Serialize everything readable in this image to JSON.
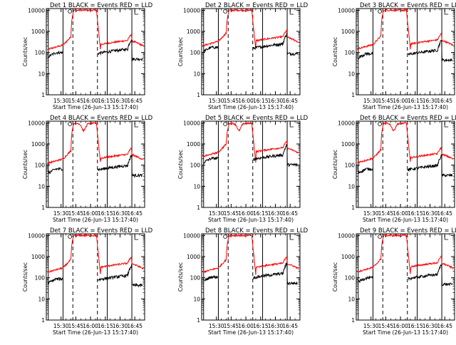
{
  "chart_data": {
    "type": "line",
    "layout": "3x3 grid",
    "x_ticks": [
      "15:30",
      "15:45",
      "16:00",
      "16:15",
      "16:30",
      "16:45"
    ],
    "x_range_minutes": [
      -5,
      95
    ],
    "xlabel": "Start Time (26-Jun-13 15:17:40)",
    "ylabel": "Counts/sec",
    "y_scale": "log",
    "ylim": [
      1,
      12000
    ],
    "y_ticks": [
      "1",
      "10",
      "100",
      "1000",
      "10000"
    ],
    "series_colors": {
      "events": "#000000",
      "lld": "#ff0000"
    },
    "panels": [
      {
        "title": "Det 1  BLACK = Events  RED = LLD",
        "base_red": 160,
        "base_black": 90,
        "peak_red": 10000,
        "dip": false
      },
      {
        "title": "Det 2  BLACK = Events  RED = LLD",
        "base_red": 240,
        "base_black": 160,
        "peak_red": 10000,
        "dip": false
      },
      {
        "title": "Det 3  BLACK = Events  RED = LLD",
        "base_red": 170,
        "base_black": 80,
        "peak_red": 10000,
        "dip": false
      },
      {
        "title": "Det 4  BLACK = Events  RED = LLD",
        "base_red": 140,
        "base_black": 60,
        "peak_red": 9500,
        "dip": true
      },
      {
        "title": "Det 5  BLACK = Events  RED = LLD",
        "base_red": 290,
        "base_black": 190,
        "peak_red": 9500,
        "dip": true
      },
      {
        "title": "Det 6  BLACK = Events  RED = LLD",
        "base_red": 150,
        "base_black": 60,
        "peak_red": 9500,
        "dip": true
      },
      {
        "title": "Det 7  BLACK = Events  RED = LLD",
        "base_red": 210,
        "base_black": 80,
        "peak_red": 10000,
        "dip": false
      },
      {
        "title": "Det 8  BLACK = Events  RED = LLD",
        "base_red": 210,
        "base_black": 100,
        "peak_red": 10000,
        "dip": false
      },
      {
        "title": "Det 9  BLACK = Events  RED = LLD",
        "base_red": 220,
        "base_black": 90,
        "peak_red": 10000,
        "dip": false
      }
    ],
    "solid_vlines_minutes": [
      -3,
      12,
      57,
      82
    ],
    "dashed_vlines_minutes": [
      22,
      47
    ]
  }
}
